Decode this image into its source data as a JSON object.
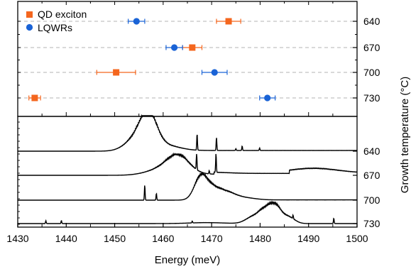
{
  "chart_data": [
    {
      "type": "scatter",
      "panel": "top",
      "error_bars": "horizontal",
      "xlim": [
        1430,
        1500
      ],
      "y_categories": [
        "640",
        "670",
        "700",
        "730"
      ],
      "legend_position": "top-left",
      "grid": "dashed horizontal guide lines at each growth temperature",
      "series": [
        {
          "name": "QD exciton",
          "marker": "square",
          "color": "#f4661e",
          "points": [
            {
              "temp": "640",
              "energy": 1473.5,
              "err": 2.5
            },
            {
              "temp": "670",
              "energy": 1466.0,
              "err": 2.0
            },
            {
              "temp": "700",
              "energy": 1450.3,
              "err": 4.0
            },
            {
              "temp": "730",
              "energy": 1433.5,
              "err": 1.2
            }
          ]
        },
        {
          "name": "LQWRs",
          "marker": "circle",
          "color": "#1a63d6",
          "points": [
            {
              "temp": "640",
              "energy": 1454.5,
              "err": 1.7
            },
            {
              "temp": "670",
              "energy": 1462.3,
              "err": 1.7
            },
            {
              "temp": "700",
              "energy": 1470.6,
              "err": 2.6
            },
            {
              "temp": "730",
              "energy": 1481.5,
              "err": 1.6
            }
          ]
        }
      ]
    },
    {
      "type": "line",
      "panel": "bottom",
      "xlabel": "Energy (meV)",
      "xlim": [
        1430,
        1500
      ],
      "xticks": [
        1430,
        1440,
        1450,
        1460,
        1470,
        1480,
        1490,
        1500
      ],
      "ylabel": "Growth temperature (°C)",
      "y_tick_labels": [
        "640",
        "670",
        "700",
        "730"
      ],
      "color": "#000000",
      "series": [
        {
          "name": "640",
          "peak_energy": 1457.0,
          "sharp_lines": [
            1467.0,
            1471.0,
            1475.0,
            1476.3,
            1479.9
          ]
        },
        {
          "name": "670",
          "peak_energy": 1463.0,
          "sharp_lines": [
            1466.9,
            1469.5,
            1470.9
          ]
        },
        {
          "name": "700",
          "peak_energy": 1468.0,
          "sharp_lines": [
            1456.2,
            1458.6
          ]
        },
        {
          "name": "730",
          "peak_energy": 1483.0,
          "sharp_lines": [
            1435.8,
            1439.0,
            1466.0,
            1486.8,
            1495.2
          ]
        }
      ]
    }
  ]
}
